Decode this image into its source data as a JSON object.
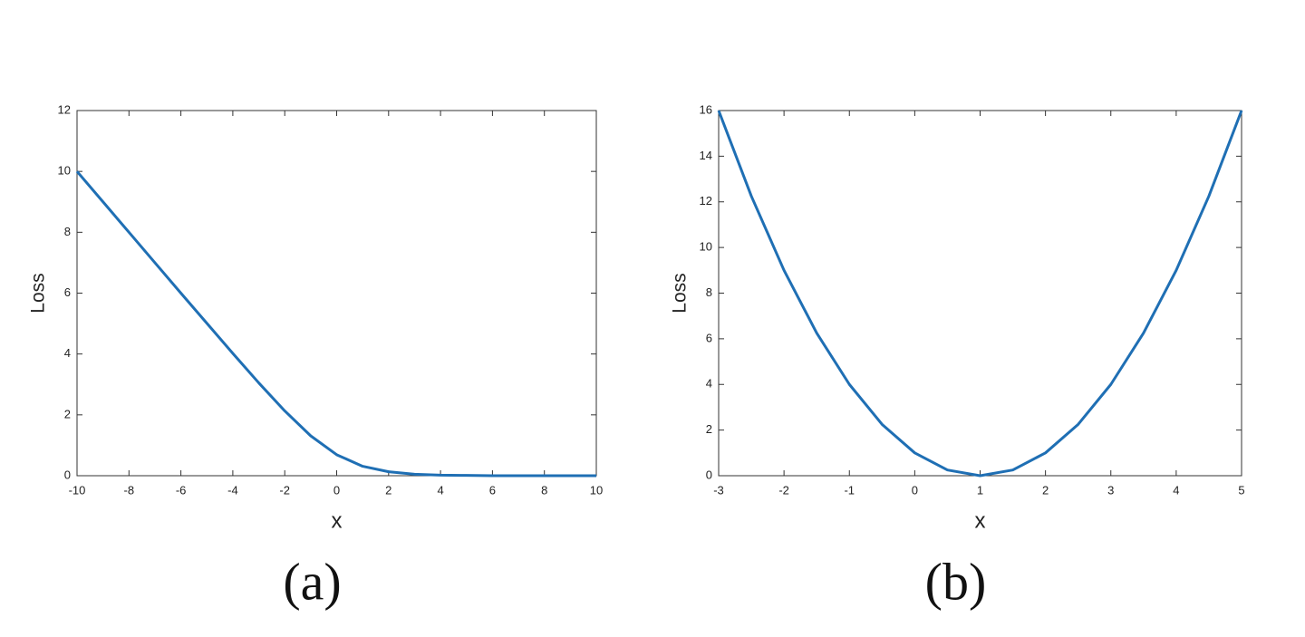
{
  "chart_data": [
    {
      "type": "line",
      "caption": "(a)",
      "xlabel": "x",
      "ylabel": "Loss",
      "x": [
        -10,
        -9,
        -8,
        -7,
        -6,
        -5,
        -4,
        -3,
        -2,
        -1,
        0,
        1,
        2,
        3,
        4,
        5,
        6,
        7,
        8,
        9,
        10
      ],
      "series": [
        {
          "color": "#1f6fb4",
          "values": [
            10.0,
            9.0,
            8.0,
            7.0,
            6.0,
            5.01,
            4.02,
            3.05,
            2.13,
            1.31,
            0.69,
            0.31,
            0.13,
            0.05,
            0.02,
            0.01,
            0.0,
            0.0,
            0.0,
            0.0,
            0.0
          ]
        }
      ],
      "xlim": [
        -10,
        10
      ],
      "xticks": [
        -10,
        -8,
        -6,
        -4,
        -2,
        0,
        2,
        4,
        6,
        8,
        10
      ],
      "ylim": [
        0,
        12
      ],
      "yticks": [
        0,
        2,
        4,
        6,
        8,
        10,
        12
      ]
    },
    {
      "type": "line",
      "caption": "(b)",
      "xlabel": "x",
      "ylabel": "Loss",
      "x": [
        -3,
        -2.5,
        -2,
        -1.5,
        -1,
        -0.5,
        0,
        0.5,
        1,
        1.5,
        2,
        2.5,
        3,
        3.5,
        4,
        4.5,
        5
      ],
      "series": [
        {
          "color": "#1f6fb4",
          "values": [
            16,
            12.25,
            9,
            6.25,
            4,
            2.25,
            1,
            0.25,
            0,
            0.25,
            1,
            2.25,
            4,
            6.25,
            9,
            12.25,
            16
          ]
        }
      ],
      "xlim": [
        -3,
        5
      ],
      "xticks": [
        -3,
        -2,
        -1,
        0,
        1,
        2,
        3,
        4,
        5
      ],
      "ylim": [
        0,
        16
      ],
      "yticks": [
        0,
        2,
        4,
        6,
        8,
        10,
        12,
        14,
        16
      ]
    }
  ]
}
